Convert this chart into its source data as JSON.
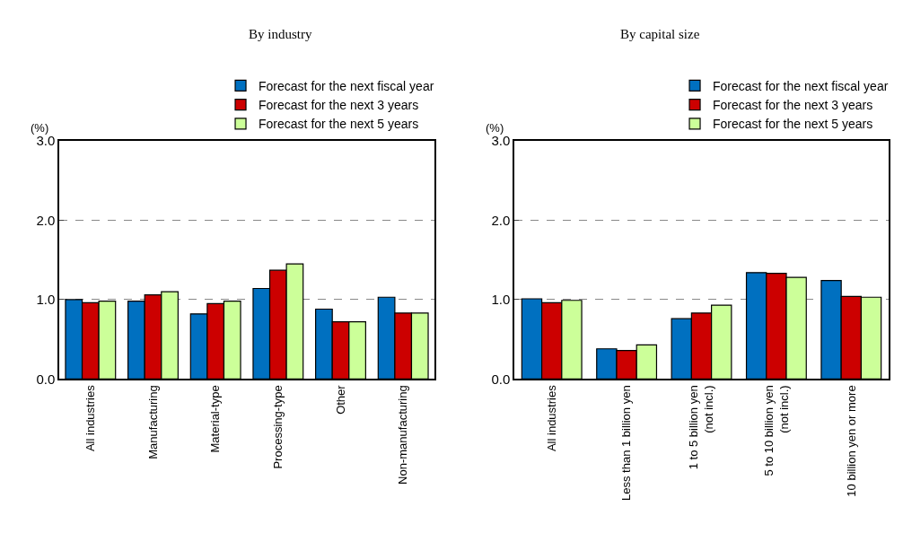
{
  "chart_data": [
    {
      "type": "bar",
      "title": "By industry",
      "ylabel": "(%)",
      "categories": [
        "All industries",
        "Manufacturing",
        "Material-type",
        "Processing-type",
        "Other",
        "Non-manufacturing"
      ],
      "series": [
        {
          "name": "Forecast for the next fiscal year",
          "color": "#0070c0",
          "values": [
            1.0,
            0.98,
            0.82,
            1.14,
            0.88,
            1.03
          ]
        },
        {
          "name": "Forecast for the next 3 years",
          "color": "#cc0000",
          "values": [
            0.96,
            1.06,
            0.95,
            1.37,
            0.72,
            0.83
          ]
        },
        {
          "name": "Forecast for the next 5 years",
          "color": "#ccff99",
          "values": [
            0.98,
            1.1,
            0.98,
            1.45,
            0.72,
            0.83
          ]
        }
      ],
      "ylim": [
        0,
        3
      ],
      "yticks": [
        {
          "value": 0,
          "label": "0.0"
        },
        {
          "value": 1,
          "label": "1.0"
        },
        {
          "value": 2,
          "label": "2.0"
        },
        {
          "value": 3,
          "label": "3.0"
        }
      ],
      "grid": "y",
      "legend": "top right"
    },
    {
      "type": "bar",
      "title": "By capital size",
      "ylabel": "(%)",
      "categories": [
        "All industries",
        "Less than 1 billion yen",
        "1 to 5 billion yen\n(not incl.)",
        "5 to 10 billion yen\n(not incl.)",
        "10 billion yen or more"
      ],
      "series": [
        {
          "name": "Forecast for the next fiscal year",
          "color": "#0070c0",
          "values": [
            1.01,
            0.38,
            0.76,
            1.34,
            1.24
          ]
        },
        {
          "name": "Forecast for the next 3 years",
          "color": "#cc0000",
          "values": [
            0.96,
            0.36,
            0.83,
            1.33,
            1.04
          ]
        },
        {
          "name": "Forecast for the next 5 years",
          "color": "#ccff99",
          "values": [
            0.99,
            0.43,
            0.93,
            1.28,
            1.03
          ]
        }
      ],
      "ylim": [
        0,
        3
      ],
      "yticks": [
        {
          "value": 0,
          "label": "0.0"
        },
        {
          "value": 1,
          "label": "1.0"
        },
        {
          "value": 2,
          "label": "2.0"
        },
        {
          "value": 3,
          "label": "3.0"
        }
      ],
      "grid": "y",
      "legend": "top right"
    }
  ]
}
